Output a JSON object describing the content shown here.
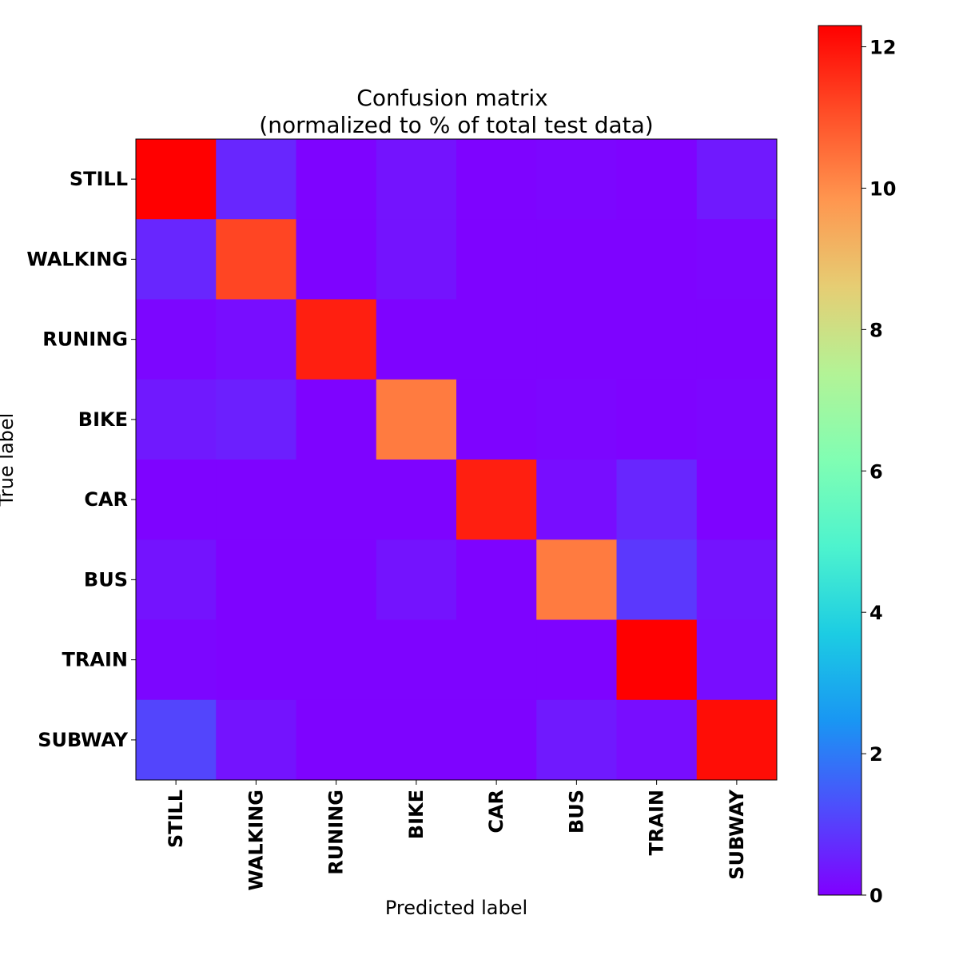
{
  "chart_data": {
    "type": "heatmap",
    "title": "Confusion matrix",
    "subtitle": "(normalized to % of total test data)",
    "xlabel": "Predicted label",
    "ylabel": "True label",
    "x_categories": [
      "STILL",
      "WALKING",
      "RUNING",
      "BIKE",
      "CAR",
      "BUS",
      "TRAIN",
      "SUBWAY"
    ],
    "y_categories": [
      "STILL",
      "WALKING",
      "RUNING",
      "BIKE",
      "CAR",
      "BUS",
      "TRAIN",
      "SUBWAY"
    ],
    "values": [
      [
        12.3,
        0.6,
        0.05,
        0.3,
        0.05,
        0.1,
        0.05,
        0.4
      ],
      [
        0.6,
        11.2,
        0.05,
        0.3,
        0.05,
        0.05,
        0.05,
        0.1
      ],
      [
        0.1,
        0.2,
        11.8,
        0.05,
        0.05,
        0.05,
        0.05,
        0.05
      ],
      [
        0.4,
        0.5,
        0.05,
        10.3,
        0.05,
        0.1,
        0.05,
        0.1
      ],
      [
        0.05,
        0.05,
        0.05,
        0.05,
        11.8,
        0.2,
        0.6,
        0.05
      ],
      [
        0.3,
        0.05,
        0.05,
        0.3,
        0.05,
        10.3,
        0.9,
        0.3
      ],
      [
        0.1,
        0.05,
        0.05,
        0.05,
        0.05,
        0.05,
        12.3,
        0.2
      ],
      [
        1.1,
        0.3,
        0.05,
        0.05,
        0.05,
        0.4,
        0.2,
        12.1
      ]
    ],
    "colorbar": {
      "colormap": "rainbow",
      "range": [
        0,
        12.3
      ],
      "ticks": [
        0,
        2,
        4,
        6,
        8,
        10,
        12
      ],
      "stops": [
        "#8000ff",
        "#4e4dfc",
        "#1996f3",
        "#1ccce3",
        "#4df3ce",
        "#80feb3",
        "#b3f396",
        "#e6cd73",
        "#ff964f",
        "#ff4d27",
        "#ff0000"
      ]
    },
    "grid": false
  }
}
